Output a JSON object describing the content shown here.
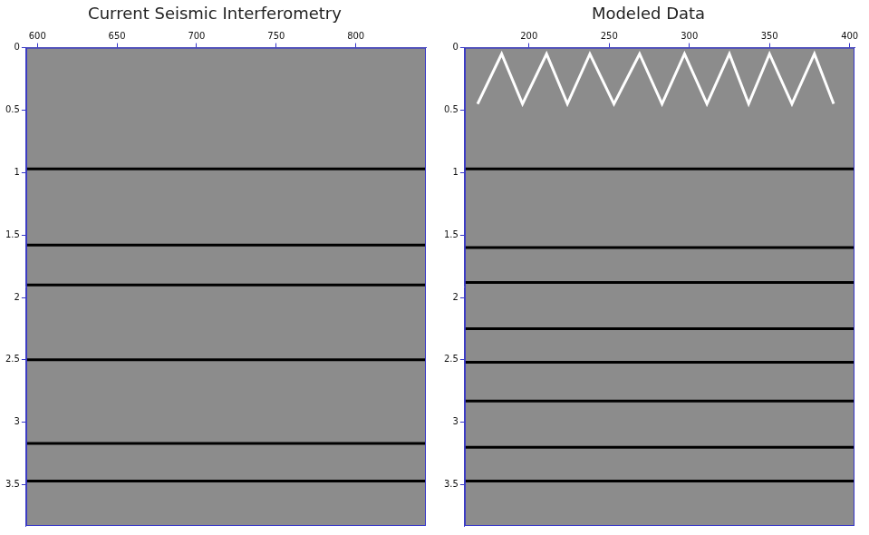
{
  "chart_data": [
    {
      "type": "line",
      "title": "Current Seismic Interferometry",
      "xlim": [
        593,
        844
      ],
      "xticks": [
        600,
        650,
        700,
        750,
        800
      ],
      "ylim": [
        0,
        3.83
      ],
      "yticks": [
        0,
        0.5,
        1,
        1.5,
        2,
        2.5,
        3,
        3.5
      ],
      "grid": false,
      "series": [
        {
          "color": "#000000",
          "x": [
            593,
            844
          ],
          "values": [
            0.97,
            0.97
          ]
        },
        {
          "color": "#000000",
          "x": [
            593,
            844
          ],
          "values": [
            1.58,
            1.58
          ]
        },
        {
          "color": "#000000",
          "x": [
            593,
            844
          ],
          "values": [
            1.9,
            1.9
          ]
        },
        {
          "color": "#000000",
          "x": [
            593,
            844
          ],
          "values": [
            2.5,
            2.5
          ]
        },
        {
          "color": "#000000",
          "x": [
            593,
            844
          ],
          "values": [
            3.17,
            3.17
          ]
        },
        {
          "color": "#000000",
          "x": [
            593,
            844
          ],
          "values": [
            3.47,
            3.47
          ]
        }
      ]
    },
    {
      "type": "line",
      "title": "Modeled Data",
      "xlim": [
        160,
        403
      ],
      "xticks": [
        200,
        250,
        300,
        350,
        400
      ],
      "ylim": [
        0,
        3.83
      ],
      "yticks": [
        0,
        0.5,
        1,
        1.5,
        2,
        2.5,
        3,
        3.5
      ],
      "grid": false,
      "series": [
        {
          "color": "#ffffff",
          "x": [
            168,
            183,
            196,
            211,
            224,
            238,
            253,
            269,
            283,
            297,
            311,
            325,
            337,
            350,
            364,
            378,
            390
          ],
          "values": [
            0.45,
            0.05,
            0.45,
            0.05,
            0.45,
            0.05,
            0.45,
            0.05,
            0.45,
            0.05,
            0.45,
            0.05,
            0.45,
            0.05,
            0.45,
            0.05,
            0.45
          ]
        },
        {
          "color": "#000000",
          "x": [
            160,
            403
          ],
          "values": [
            0.97,
            0.97
          ]
        },
        {
          "color": "#000000",
          "x": [
            160,
            403
          ],
          "values": [
            1.6,
            1.6
          ]
        },
        {
          "color": "#000000",
          "x": [
            160,
            403
          ],
          "values": [
            1.88,
            1.88
          ]
        },
        {
          "color": "#000000",
          "x": [
            160,
            403
          ],
          "values": [
            2.25,
            2.25
          ]
        },
        {
          "color": "#000000",
          "x": [
            160,
            403
          ],
          "values": [
            2.52,
            2.52
          ]
        },
        {
          "color": "#000000",
          "x": [
            160,
            403
          ],
          "values": [
            2.83,
            2.83
          ]
        },
        {
          "color": "#000000",
          "x": [
            160,
            403
          ],
          "values": [
            3.2,
            3.2
          ]
        },
        {
          "color": "#000000",
          "x": [
            160,
            403
          ],
          "values": [
            3.47,
            3.47
          ]
        }
      ]
    }
  ]
}
